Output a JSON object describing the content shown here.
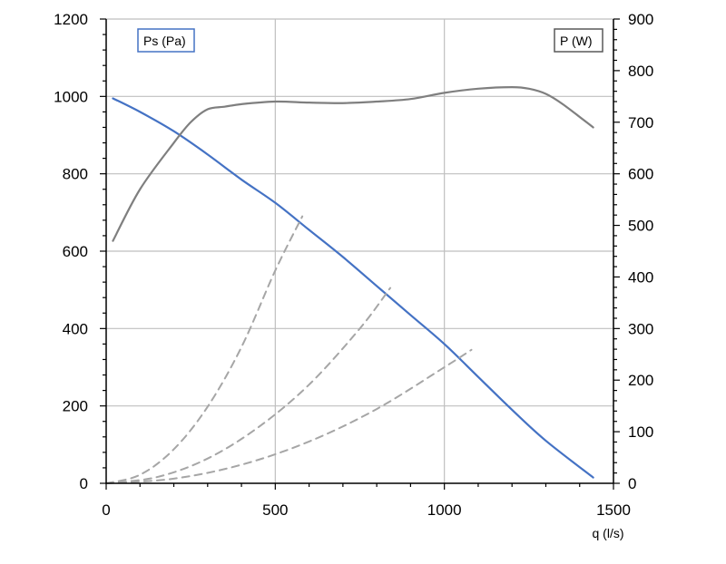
{
  "chart_data": {
    "type": "line",
    "xlabel": "q (l/s)",
    "xlim": [
      0,
      1500
    ],
    "x_ticks": [
      0,
      500,
      1000,
      1500
    ],
    "x_tick_labels": [
      "0",
      "500",
      "1000",
      "1500"
    ],
    "y_left": {
      "lim": [
        0,
        1200
      ],
      "ticks": [
        0,
        200,
        400,
        600,
        800,
        1000,
        1200
      ],
      "tick_labels": [
        "0",
        "200",
        "400",
        "600",
        "800",
        "1000",
        "1200"
      ]
    },
    "y_right": {
      "lim": [
        0,
        900
      ],
      "ticks": [
        0,
        100,
        200,
        300,
        400,
        500,
        600,
        700,
        800,
        900
      ],
      "tick_labels": [
        "0",
        "100",
        "200",
        "300",
        "400",
        "500",
        "600",
        "700",
        "800",
        "900"
      ]
    },
    "grid": true,
    "legend": [
      {
        "label": "Ps (Pa)",
        "placement": "top-left",
        "color": "#4472c4"
      },
      {
        "label": "P (W)",
        "placement": "top-right",
        "color": "#7f7f7f"
      }
    ],
    "series": [
      {
        "name": "Ps (Pa)",
        "axis": "left",
        "color": "#4472c4",
        "style": "solid",
        "x": [
          20,
          100,
          200,
          300,
          400,
          500,
          600,
          700,
          800,
          900,
          1000,
          1100,
          1200,
          1300,
          1440
        ],
        "y": [
          995,
          960,
          910,
          850,
          785,
          725,
          655,
          585,
          510,
          435,
          360,
          275,
          190,
          110,
          15
        ]
      },
      {
        "name": "P (W)",
        "axis": "right",
        "color": "#7f7f7f",
        "style": "solid",
        "x": [
          20,
          100,
          200,
          250,
          300,
          350,
          400,
          500,
          600,
          700,
          800,
          900,
          1000,
          1100,
          1200,
          1250,
          1300,
          1350,
          1440
        ],
        "y": [
          470,
          570,
          660,
          700,
          725,
          730,
          735,
          740,
          738,
          737,
          740,
          745,
          757,
          765,
          768,
          765,
          755,
          735,
          690
        ]
      },
      {
        "name": "",
        "axis": "left",
        "color": "#a6a6a6",
        "style": "dashed",
        "x": [
          0,
          100,
          200,
          300,
          400,
          500,
          580
        ],
        "y": [
          0,
          22,
          88,
          198,
          352,
          550,
          690
        ]
      },
      {
        "name": "",
        "axis": "left",
        "color": "#a6a6a6",
        "style": "dashed",
        "x": [
          0,
          150,
          300,
          450,
          600,
          750,
          840
        ],
        "y": [
          0,
          16,
          64,
          145,
          255,
          400,
          505
        ]
      },
      {
        "name": "",
        "axis": "left",
        "color": "#a6a6a6",
        "style": "dashed",
        "x": [
          0,
          200,
          400,
          600,
          800,
          1000,
          1080
        ],
        "y": [
          0,
          12,
          48,
          108,
          192,
          300,
          345
        ]
      }
    ]
  }
}
